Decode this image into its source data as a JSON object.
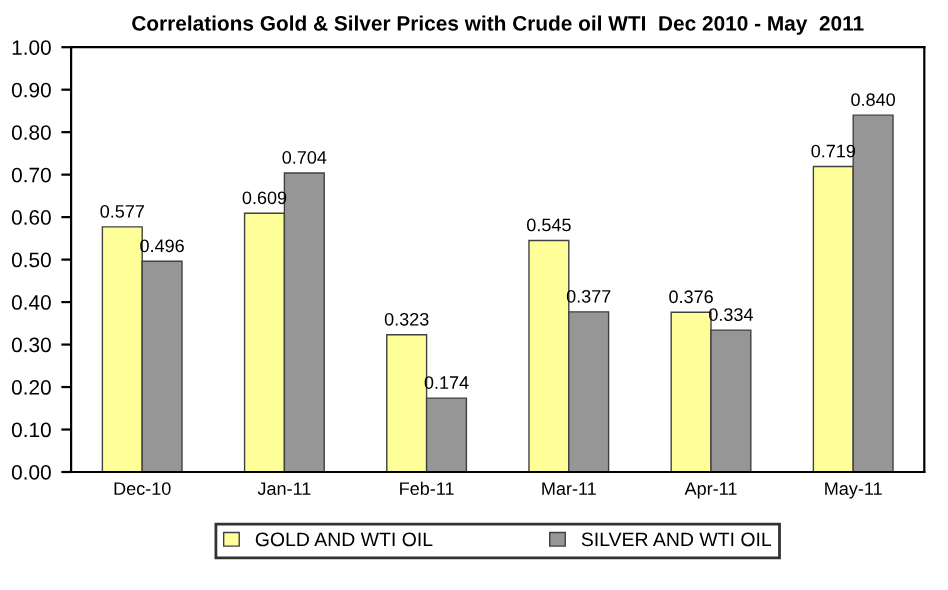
{
  "chart_data": {
    "type": "bar",
    "title": "Correlations Gold & Silver Prices with Crude oil WTI  Dec 2010 - May  2011",
    "categories": [
      "Dec-10",
      "Jan-11",
      "Feb-11",
      "Mar-11",
      "Apr-11",
      "May-11"
    ],
    "series": [
      {
        "name": "GOLD AND WTI OIL",
        "color": "#ffff99",
        "values": [
          0.577,
          0.609,
          0.323,
          0.545,
          0.376,
          0.719
        ],
        "value_labels": [
          "0.577",
          "0.609",
          "0.323",
          "0.545",
          "0.376",
          "0.719"
        ]
      },
      {
        "name": "SILVER AND WTI OIL",
        "color": "#969696",
        "values": [
          0.496,
          0.704,
          0.174,
          0.377,
          0.334,
          0.84
        ],
        "value_labels": [
          "0.496",
          "0.704",
          "0.174",
          "0.377",
          "0.334",
          "0.840"
        ]
      }
    ],
    "ylim": [
      0,
      1
    ],
    "yticks": [
      {
        "value": 0,
        "label": "0.00"
      },
      {
        "value": 0.1,
        "label": "0.10"
      },
      {
        "value": 0.2,
        "label": "0.20"
      },
      {
        "value": 0.3,
        "label": "0.30"
      },
      {
        "value": 0.4,
        "label": "0.40"
      },
      {
        "value": 0.5,
        "label": "0.50"
      },
      {
        "value": 0.6,
        "label": "0.60"
      },
      {
        "value": 0.7,
        "label": "0.70"
      },
      {
        "value": 0.8,
        "label": "0.80"
      },
      {
        "value": 0.9,
        "label": "0.90"
      },
      {
        "value": 1,
        "label": "1.00"
      }
    ],
    "legend": "bottom",
    "grid": false
  }
}
